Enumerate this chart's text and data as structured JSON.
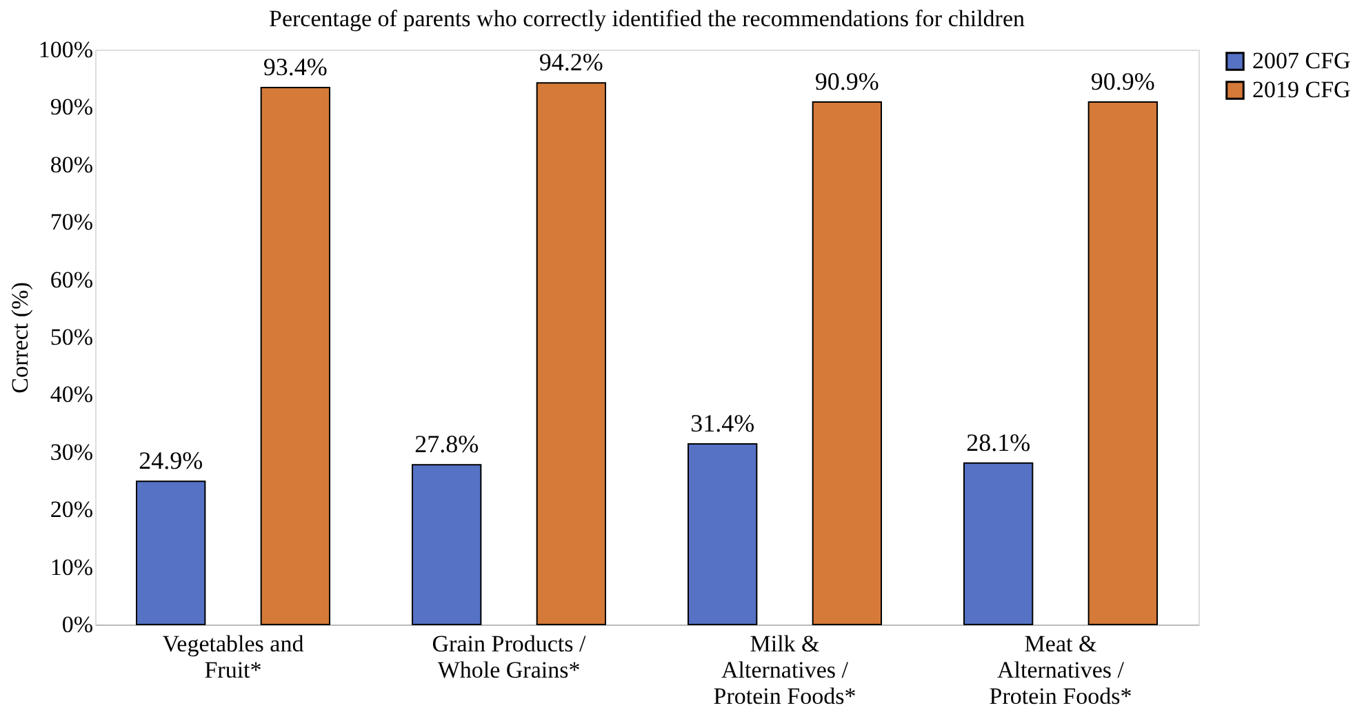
{
  "chart_data": {
    "type": "bar",
    "title": "Percentage of parents who correctly identified the recommendations for children",
    "ylabel": "Correct (%)",
    "categories": [
      "Vegetables and Fruit*",
      "Grain Products / Whole Grains*",
      "Milk & Alternatives / Protein Foods*",
      "Meat & Alternatives / Protein Foods*"
    ],
    "series": [
      {
        "name": "2007 CFG",
        "color": "#5572c5",
        "values": [
          24.9,
          27.8,
          31.4,
          28.1
        ],
        "value_labels": [
          "24.9%",
          "27.8%",
          "31.4%",
          "28.1%"
        ]
      },
      {
        "name": "2019 CFG",
        "color": "#d57a39",
        "values": [
          93.4,
          94.2,
          90.9,
          90.9
        ],
        "value_labels": [
          "93.4%",
          "94.2%",
          "90.9%",
          "90.9%"
        ]
      }
    ],
    "ylim": [
      0,
      100
    ],
    "yticks": [
      {
        "value": 0,
        "label": "0%"
      },
      {
        "value": 10,
        "label": "10%"
      },
      {
        "value": 20,
        "label": "20%"
      },
      {
        "value": 30,
        "label": "30%"
      },
      {
        "value": 40,
        "label": "40%"
      },
      {
        "value": 50,
        "label": "50%"
      },
      {
        "value": 60,
        "label": "60%"
      },
      {
        "value": 70,
        "label": "70%"
      },
      {
        "value": 80,
        "label": "80%"
      },
      {
        "value": 90,
        "label": "90%"
      },
      {
        "value": 100,
        "label": "100%"
      }
    ],
    "grid": false,
    "legend": "right"
  }
}
